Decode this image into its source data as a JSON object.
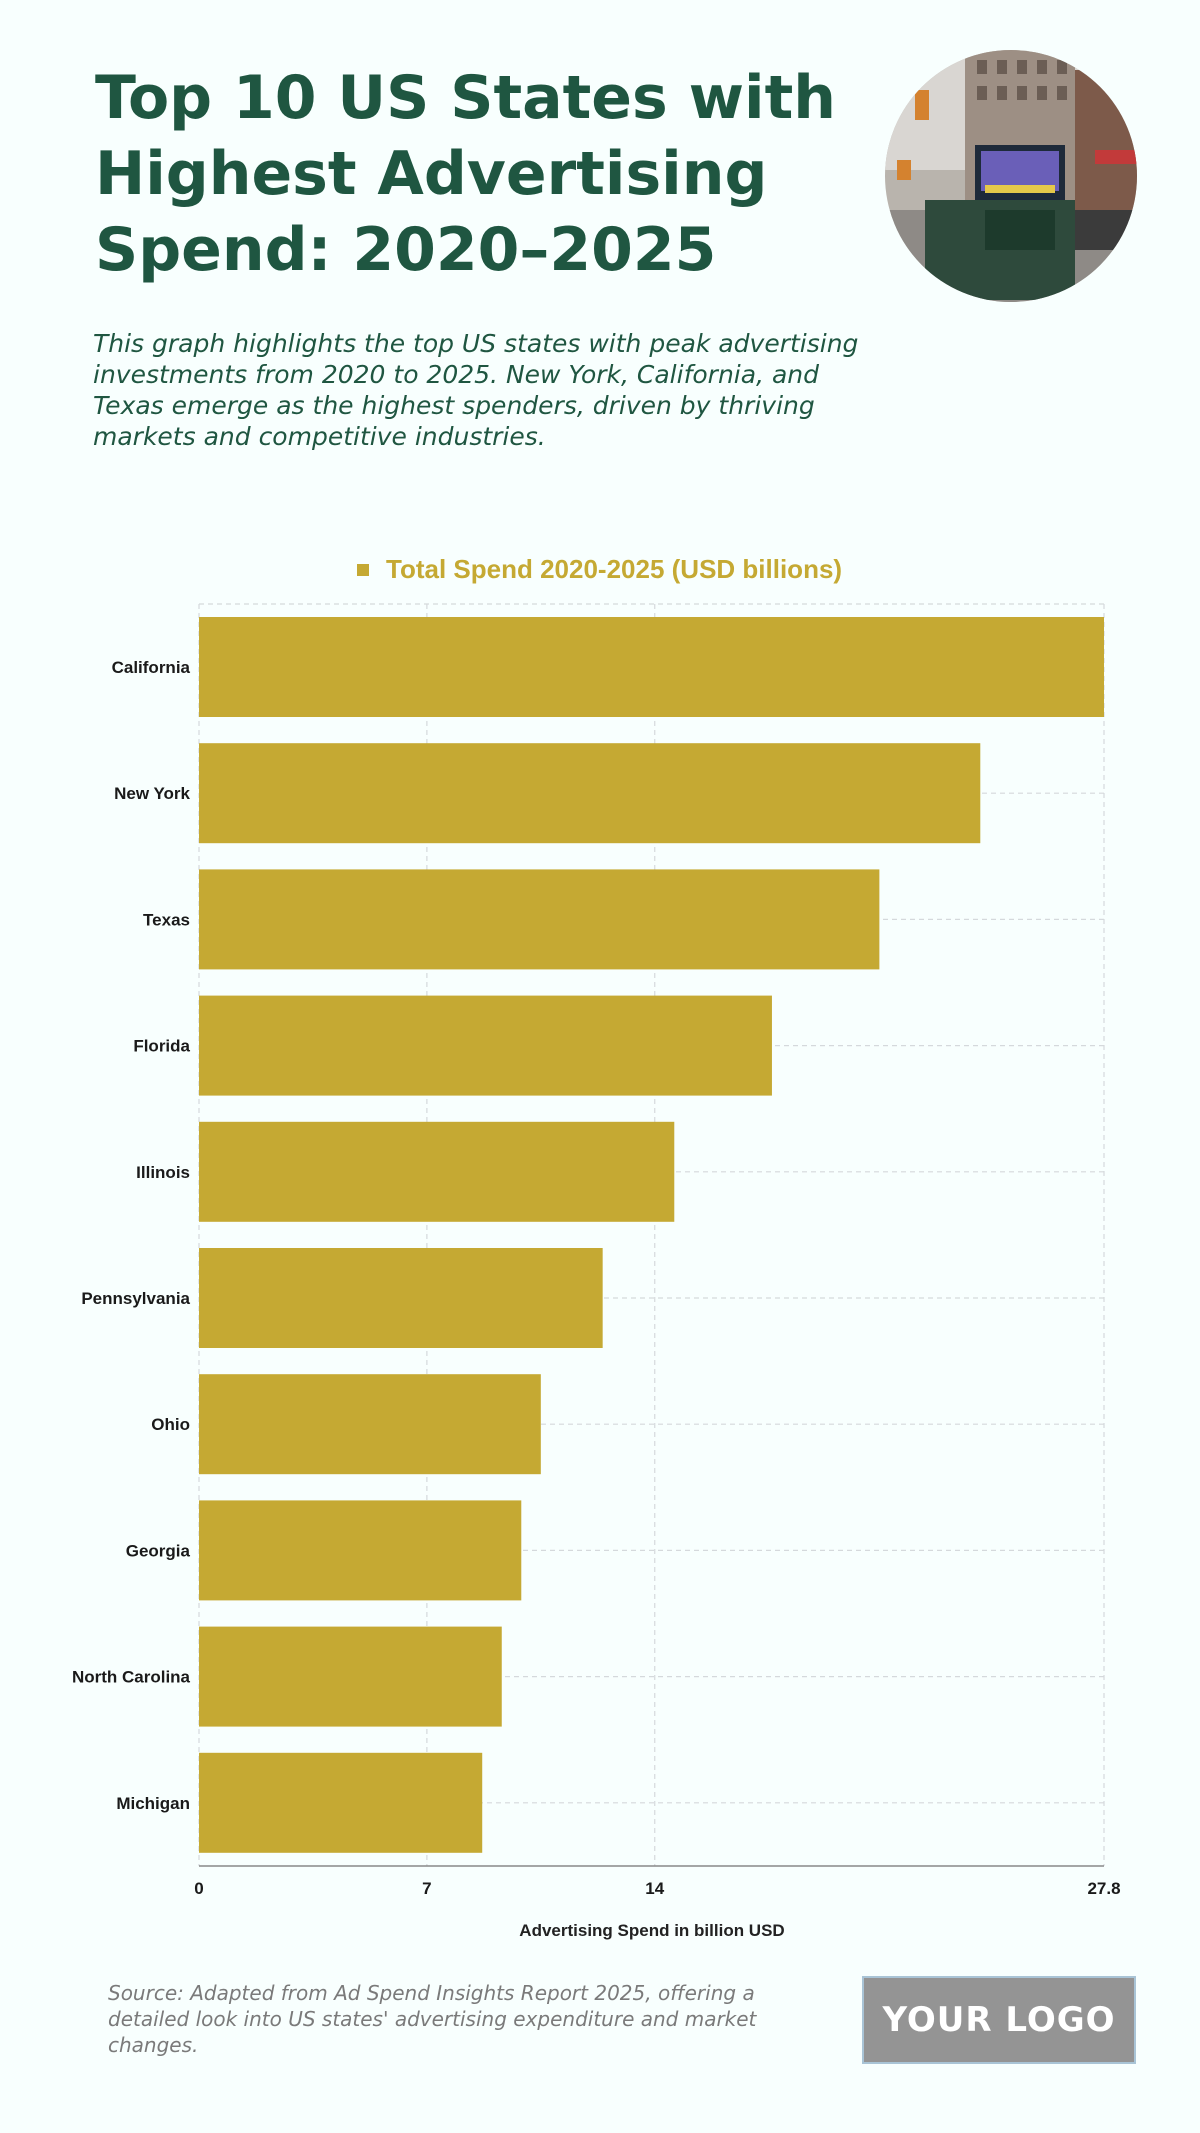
{
  "header": {
    "title": "Top 10 US States with Highest Advertising Spend: 2020–2025",
    "subtitle": "This graph highlights the top US states with peak advertising investments from 2020 to 2025. New York, California, and Texas emerge as the highest spenders, driven by thriving markets and competitive industries."
  },
  "footer": {
    "source": "Source: Adapted from Ad Spend Insights Report 2025, offering a detailed look into US states' advertising expenditure and market changes.",
    "logo_text": "YOUR LOGO"
  },
  "colors": {
    "bar": "#c5a933",
    "title": "#1f5641",
    "grid": "#d5d9dc"
  },
  "chart_data": {
    "type": "bar",
    "orientation": "horizontal",
    "categories": [
      "California",
      "New York",
      "Texas",
      "Florida",
      "Illinois",
      "Pennsylvania",
      "Ohio",
      "Georgia",
      "North Carolina",
      "Michigan"
    ],
    "series": [
      {
        "name": "Total Spend 2020-2025 (USD billions)",
        "values": [
          27.8,
          24.0,
          20.9,
          17.6,
          14.6,
          12.4,
          10.5,
          9.9,
          9.3,
          8.7
        ]
      }
    ],
    "xlabel": "Advertising Spend in billion USD",
    "ylabel": "",
    "xlim": [
      0,
      27.8
    ],
    "xticks": [
      "0",
      "7",
      "14",
      "27.8"
    ],
    "xtick_values": [
      0,
      7,
      14,
      27.8
    ],
    "grid": true,
    "legend_position": "top"
  }
}
